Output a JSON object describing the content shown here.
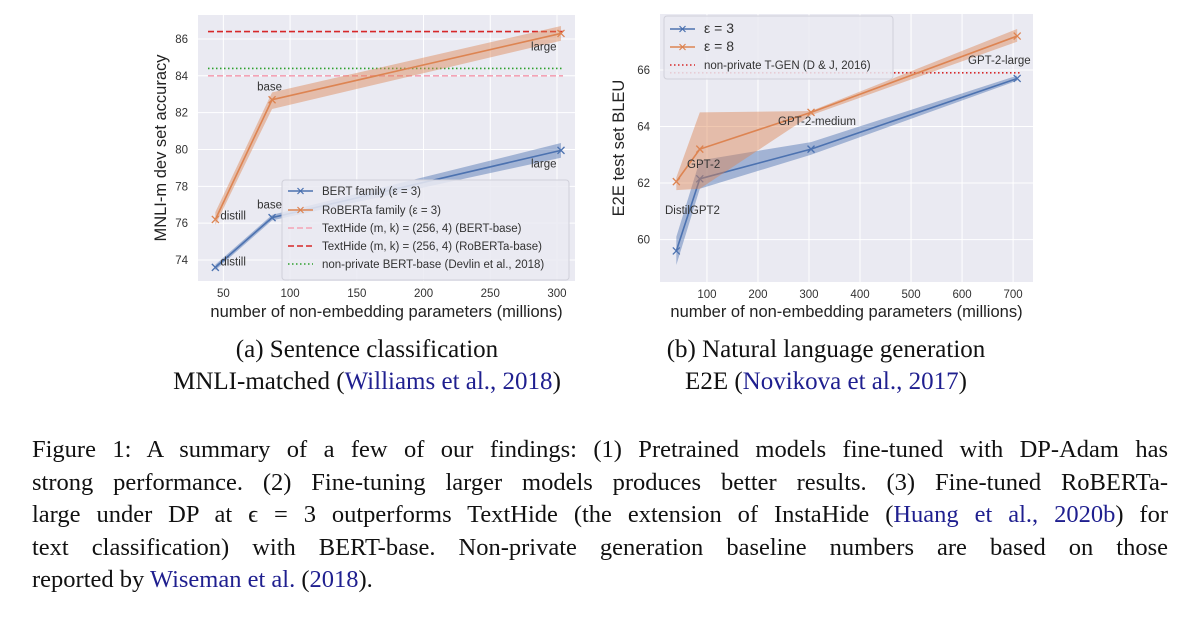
{
  "colors": {
    "blue": "#4c72b0",
    "orange": "#dd8452",
    "pink": "#f4a3b5",
    "red": "#d62728",
    "green": "#2ca02c",
    "plot_bg": "#eaeaf2",
    "link": "#1f1f8f"
  },
  "chart_data": [
    {
      "type": "line",
      "panel": "a",
      "xlabel": "number of non-embedding parameters (millions)",
      "ylabel": "MNLI-m dev set accuracy",
      "xlim": [
        31,
        313.5
      ],
      "ylim": [
        72.86,
        87.3
      ],
      "xticks": [
        50,
        100,
        150,
        200,
        250,
        300
      ],
      "yticks": [
        74,
        76,
        78,
        80,
        82,
        84,
        86
      ],
      "grid": true,
      "legend_position": "lower-right",
      "series": [
        {
          "name": "BERT family (ε = 3)",
          "color": "#4c72b0",
          "x": [
            44,
            86.5,
            303
          ],
          "y": [
            73.6,
            76.3,
            79.95
          ],
          "lower": [
            73.45,
            76.15,
            79.55
          ],
          "upper": [
            73.75,
            76.45,
            80.35
          ],
          "labels": [
            "distill",
            "base",
            "large"
          ]
        },
        {
          "name": "RoBERTa family (ε = 3)",
          "color": "#dd8452",
          "x": [
            44,
            86.5,
            303
          ],
          "y": [
            76.2,
            82.7,
            86.3
          ],
          "lower": [
            75.9,
            82.2,
            85.9
          ],
          "upper": [
            76.6,
            83.1,
            86.7
          ],
          "labels": [
            "distill",
            "base",
            "large"
          ]
        }
      ],
      "hlines": [
        {
          "name": "TextHide (m, k) = (256, 4) (BERT-base)",
          "y": 84.0,
          "color": "#f4a3b5",
          "style": "dashed"
        },
        {
          "name": "TextHide (m, k) = (256, 4) (RoBERTa-base)",
          "y": 86.4,
          "color": "#d62728",
          "style": "dashed"
        },
        {
          "name": "non-private BERT-base (Devlin et al., 2018)",
          "y": 84.4,
          "color": "#2ca02c",
          "style": "dotted"
        }
      ]
    },
    {
      "type": "line",
      "panel": "b",
      "xlabel": "number of non-embedding parameters (millions)",
      "ylabel": "E2E test set BLEU",
      "xlim": [
        8,
        739
      ],
      "ylim": [
        58.5,
        67.98
      ],
      "xticks": [
        100,
        200,
        300,
        400,
        500,
        600,
        700
      ],
      "yticks": [
        60,
        62,
        64,
        66
      ],
      "grid": true,
      "legend_position": "upper-left",
      "series": [
        {
          "name": "ε = 3",
          "color": "#4c72b0",
          "x": [
            40,
            86,
            304,
            708
          ],
          "y": [
            59.6,
            62.15,
            63.2,
            65.7
          ],
          "lower": [
            59.1,
            61.8,
            63.0,
            65.62
          ],
          "upper": [
            60.1,
            62.8,
            63.45,
            65.8
          ],
          "labels": []
        },
        {
          "name": "ε = 8",
          "color": "#dd8452",
          "x": [
            40,
            86,
            304,
            708
          ],
          "y": [
            62.05,
            63.2,
            64.5,
            67.2
          ],
          "lower": [
            61.75,
            61.8,
            64.4,
            67.0
          ],
          "upper": [
            62.2,
            64.5,
            64.55,
            67.45
          ],
          "labels": []
        }
      ],
      "hlines": [
        {
          "name": "non-private T-GEN (D & J, 2016)",
          "y": 65.9,
          "color": "#d62728",
          "style": "dotted"
        }
      ],
      "annotations": [
        "DistilGPT2",
        "GPT-2",
        "GPT-2-medium",
        "GPT-2-large"
      ]
    }
  ],
  "subcaptions": {
    "a": {
      "line1": "(a) Sentence classification",
      "line2_prefix": "MNLI-matched (",
      "line2_link": "Williams et al., 2018",
      "line2_suffix": ")"
    },
    "b": {
      "line1": "(b) Natural language generation",
      "line2_prefix": "E2E (",
      "line2_link": "Novikova et al., 2017",
      "line2_suffix": ")"
    }
  },
  "caption": {
    "lines": [
      [
        {
          "text": "Figure 1: A summary of a few of our findings: (1) Pretrained models fine-tuned with DP-Adam has"
        }
      ],
      [
        {
          "text": "strong performance. (2) Fine-tuning larger models produces better results. (3) Fine-tuned RoBERTa-"
        }
      ],
      [
        {
          "text": "large under DP at ϵ = 3 outperforms TextHide (the extension of InstaHide ("
        },
        {
          "text": "Huang et al., 2020b",
          "link": true
        },
        {
          "text": ") for"
        }
      ],
      [
        {
          "text": "text classification) with BERT-base. Non-private generation baseline numbers are based on those"
        }
      ],
      [
        {
          "text": "reported by "
        },
        {
          "text": "Wiseman et al.",
          "link": true
        },
        {
          "text": " ("
        },
        {
          "text": "2018",
          "link": true
        },
        {
          "text": ")."
        }
      ]
    ]
  }
}
